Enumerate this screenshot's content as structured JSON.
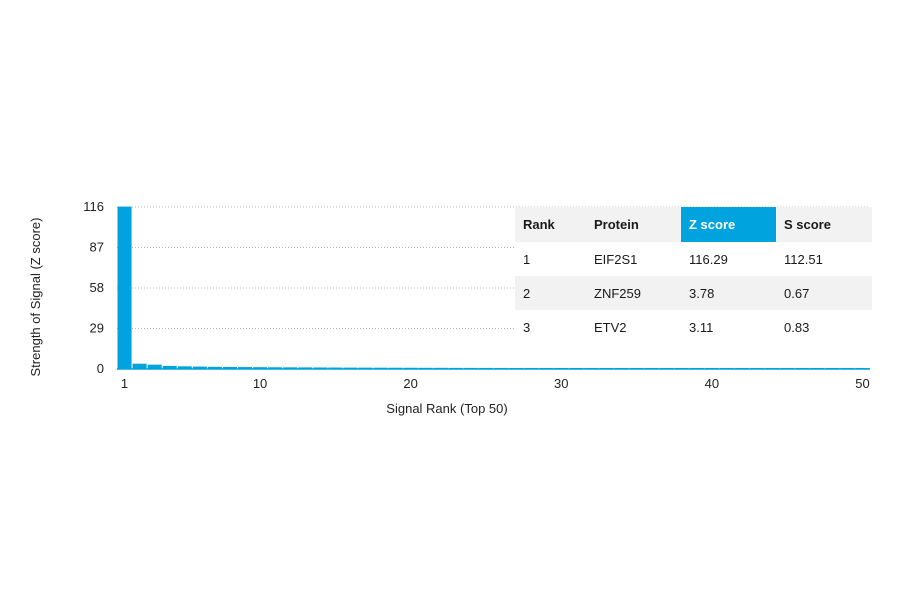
{
  "chart_data": {
    "type": "bar",
    "xlabel": "Signal Rank (Top 50)",
    "ylabel": "Strength of Signal (Z score)",
    "ylim": [
      0,
      116
    ],
    "yticks": [
      0,
      29,
      58,
      87,
      116
    ],
    "xlim": [
      1,
      50
    ],
    "xticks": [
      1,
      10,
      20,
      30,
      40,
      50
    ],
    "grid": "horizontal dotted",
    "bar_color": "#00a3dd",
    "values": [
      116.29,
      3.78,
      3.11,
      2.2,
      1.9,
      1.7,
      1.55,
      1.45,
      1.38,
      1.3,
      1.24,
      1.18,
      1.13,
      1.08,
      1.04,
      1.0,
      0.97,
      0.94,
      0.91,
      0.88,
      0.85,
      0.83,
      0.81,
      0.79,
      0.77,
      0.75,
      0.73,
      0.71,
      0.7,
      0.68,
      0.67,
      0.65,
      0.64,
      0.63,
      0.62,
      0.6,
      0.59,
      0.58,
      0.57,
      0.56,
      0.55,
      0.54,
      0.53,
      0.52,
      0.51,
      0.5,
      0.49,
      0.48,
      0.47,
      0.46
    ]
  },
  "table": {
    "headers": [
      "Rank",
      "Protein",
      "Z score",
      "S score"
    ],
    "highlight_header": "Z score",
    "highlight_color": "#00a3dd",
    "rows": [
      [
        "1",
        "EIF2S1",
        "116.29",
        "112.51"
      ],
      [
        "2",
        "ZNF259",
        "3.78",
        "0.67"
      ],
      [
        "3",
        "ETV2",
        "3.11",
        "0.83"
      ]
    ]
  }
}
